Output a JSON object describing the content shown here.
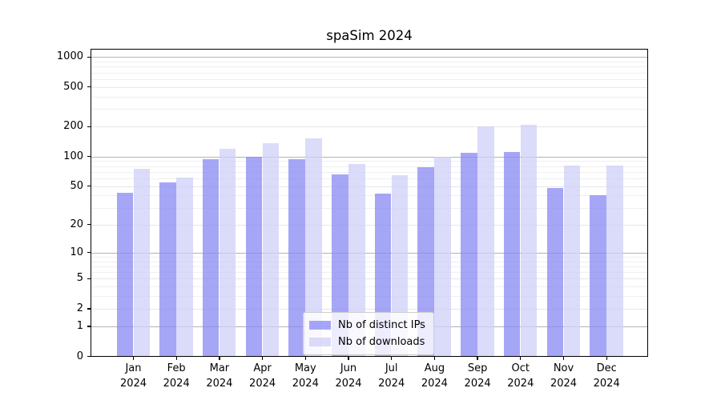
{
  "title": "spaSim 2024",
  "chart_data": {
    "type": "bar",
    "title": "spaSim 2024",
    "categories": [
      "Jan",
      "Feb",
      "Mar",
      "Apr",
      "May",
      "Jun",
      "Jul",
      "Aug",
      "Sep",
      "Oct",
      "Nov",
      "Dec"
    ],
    "category_year": "2024",
    "series": [
      {
        "name": "Nb of distinct IPs",
        "color": "rgba(136,136,244,0.75)",
        "values": [
          43,
          54,
          94,
          100,
          94,
          66,
          42,
          78,
          108,
          110,
          48,
          40
        ]
      },
      {
        "name": "Nb of downloads",
        "color": "rgba(207,207,248,0.75)",
        "values": [
          75,
          61,
          120,
          137,
          152,
          84,
          64,
          100,
          200,
          210,
          81,
          81
        ]
      }
    ],
    "yscale": "log1p",
    "ylim": [
      0,
      1220
    ],
    "yticks": [
      1000,
      500,
      200,
      100,
      50,
      20,
      10,
      5,
      2,
      1,
      0
    ],
    "yticks_decade": [
      1,
      10,
      100,
      1000
    ],
    "yminor": [
      3,
      4,
      6,
      7,
      8,
      9,
      30,
      40,
      60,
      70,
      80,
      90,
      300,
      400,
      600,
      700,
      800,
      900
    ],
    "grid": "on",
    "legend_position": "lower center",
    "background_color": "#ffffff",
    "spine_color": "#000000",
    "grid_decade_color": "#b3b3b3",
    "grid_major_color": "#e7e7e7",
    "grid_minor_color": "#f0f0f0"
  }
}
